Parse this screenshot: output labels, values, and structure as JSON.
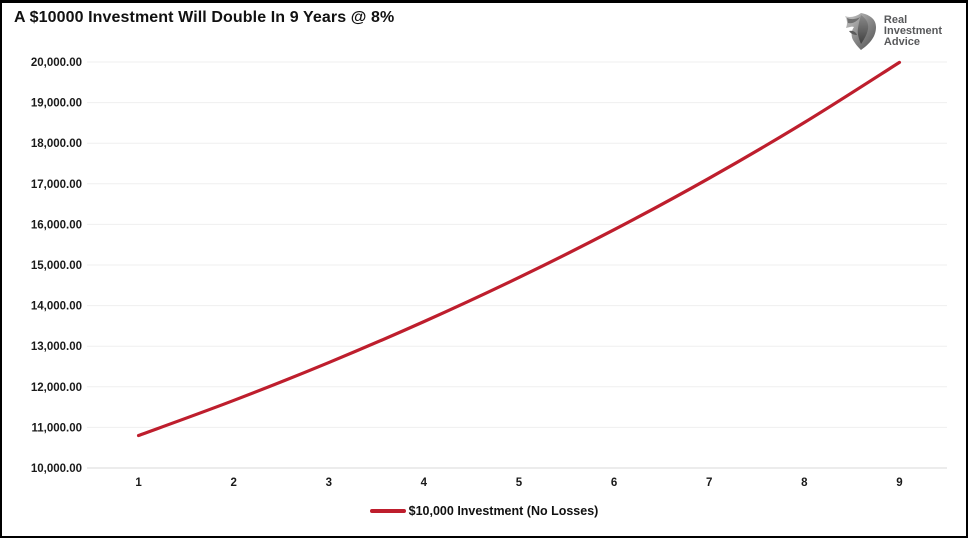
{
  "header": {
    "title": "A $10000 Investment Will Double In 9 Years @ 8%",
    "logo": {
      "icon": "eagle-shield-mark",
      "lines": [
        "Real",
        "Investment",
        "Advice"
      ],
      "text_color": "#58595b"
    }
  },
  "chart_data": {
    "type": "line",
    "title": "A $10000 Investment Will Double In 9 Years @ 8%",
    "categories": [
      "1",
      "2",
      "3",
      "4",
      "5",
      "6",
      "7",
      "8",
      "9"
    ],
    "series": [
      {
        "name": "$10,000 Investment (No Losses)",
        "color": "#be1e2d",
        "values": [
          10800.0,
          11664.0,
          12597.12,
          13604.89,
          14693.28,
          15868.74,
          17138.24,
          18509.3,
          19990.05
        ]
      }
    ],
    "xlabel": "",
    "ylabel": "",
    "ylim": [
      10000,
      20000
    ],
    "ytick_values": [
      10000,
      11000,
      12000,
      13000,
      14000,
      15000,
      16000,
      17000,
      18000,
      19000,
      20000
    ],
    "ytick_labels": [
      "10,000.00",
      "11,000.00",
      "12,000.00",
      "13,000.00",
      "14,000.00",
      "15,000.00",
      "16,000.00",
      "17,000.00",
      "18,000.00",
      "19,000.00",
      "20,000.00"
    ],
    "grid": "horizontal",
    "gridline_color": "#efefef",
    "axisline_color": "#d8d8d8",
    "tick_text_color": "#1a1a1a",
    "legend_position": "bottom-center",
    "line_smooth": true
  },
  "legend": {
    "label": "$10,000 Investment (No Losses)"
  }
}
